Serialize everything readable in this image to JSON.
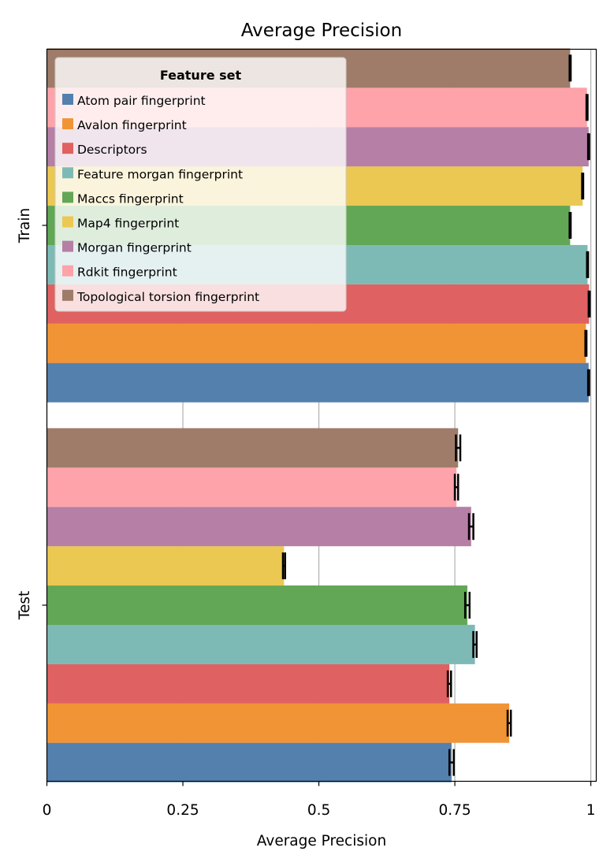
{
  "chart_data": {
    "type": "bar",
    "orientation": "horizontal",
    "title": "Average Precision",
    "xlabel": "Average Precision",
    "ylabel": "",
    "xlim": [
      0,
      1.01
    ],
    "xticks": [
      0,
      0.25,
      0.5,
      0.75,
      1
    ],
    "xtick_labels": [
      "0",
      "0.25",
      "0.5",
      "0.75",
      "1"
    ],
    "grid": "vertical gridlines at x ticks",
    "categories": [
      "Train",
      "Test"
    ],
    "legend": {
      "title": "Feature set",
      "placement": "top-left"
    },
    "series": [
      {
        "name": "Atom pair fingerprint",
        "color": "#5480AD",
        "values": [
          0.996,
          0.744
        ],
        "errors": [
          0.001,
          0.004
        ]
      },
      {
        "name": "Avalon fingerprint",
        "color": "#F19436",
        "values": [
          0.991,
          0.85
        ],
        "errors": [
          0.001,
          0.003
        ]
      },
      {
        "name": "Descriptors",
        "color": "#E06161",
        "values": [
          0.997,
          0.74
        ],
        "errors": [
          0.001,
          0.003
        ]
      },
      {
        "name": "Feature morgan fingerprint",
        "color": "#7EBAB5",
        "values": [
          0.994,
          0.787
        ],
        "errors": [
          0.001,
          0.003
        ]
      },
      {
        "name": "Maccs fingerprint",
        "color": "#62A755",
        "values": [
          0.962,
          0.773
        ],
        "errors": [
          0.001,
          0.004
        ]
      },
      {
        "name": "Map4 fingerprint",
        "color": "#EBC851",
        "values": [
          0.985,
          0.436
        ],
        "errors": [
          0.001,
          0.002
        ]
      },
      {
        "name": "Morgan fingerprint",
        "color": "#B57FA6",
        "values": [
          0.996,
          0.78
        ],
        "errors": [
          0.001,
          0.004
        ]
      },
      {
        "name": "Rdkit fingerprint",
        "color": "#FEA3AA",
        "values": [
          0.993,
          0.753
        ],
        "errors": [
          0.001,
          0.003
        ]
      },
      {
        "name": "Topological torsion fingerprint",
        "color": "#9E7C69",
        "values": [
          0.962,
          0.756
        ],
        "errors": [
          0.001,
          0.004
        ]
      }
    ]
  }
}
